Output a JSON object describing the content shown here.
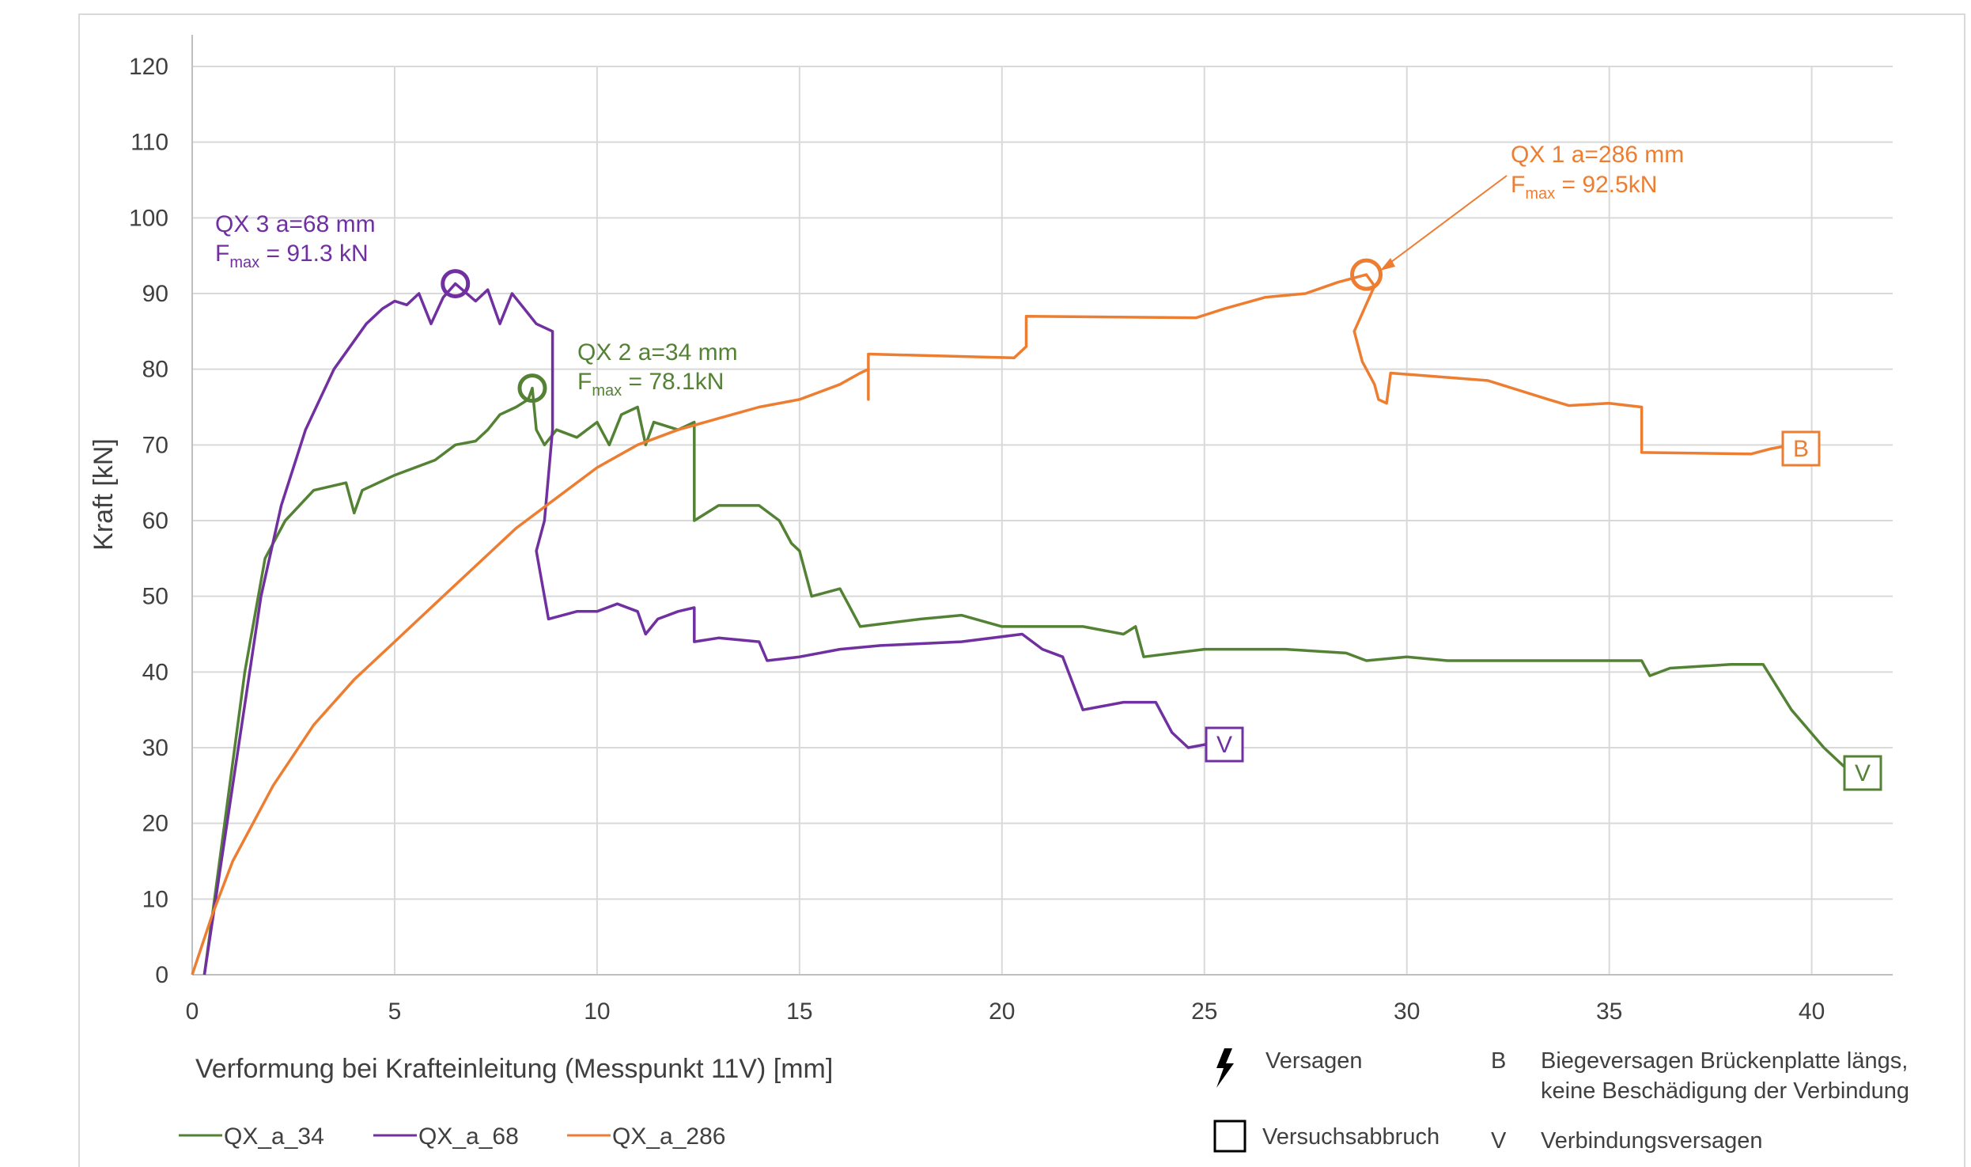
{
  "chart_data": {
    "type": "line",
    "xlabel": "Verformung bei Krafteinleitung (Messpunkt 11V) [mm]",
    "ylabel": "Kraft [kN]",
    "xlim": [
      0,
      42
    ],
    "ylim": [
      0,
      120
    ],
    "xticks": [
      0,
      5,
      10,
      15,
      20,
      25,
      30,
      35,
      40
    ],
    "yticks": [
      0,
      10,
      20,
      30,
      40,
      50,
      60,
      70,
      80,
      90,
      100,
      110,
      120
    ],
    "grid": true,
    "legend_position": "bottom-left",
    "series": [
      {
        "name": "QX_a_34",
        "color": "#548235",
        "points": [
          [
            0.3,
            0
          ],
          [
            0.8,
            20
          ],
          [
            1.3,
            40
          ],
          [
            1.8,
            55
          ],
          [
            2.3,
            60
          ],
          [
            3,
            64
          ],
          [
            3.8,
            65
          ],
          [
            4,
            61
          ],
          [
            4.2,
            64
          ],
          [
            5,
            66
          ],
          [
            6,
            68
          ],
          [
            6.5,
            70
          ],
          [
            7,
            70.5
          ],
          [
            7.3,
            72
          ],
          [
            7.6,
            74
          ],
          [
            8,
            75
          ],
          [
            8.3,
            76
          ],
          [
            8.4,
            77.5
          ],
          [
            8.5,
            72
          ],
          [
            8.7,
            70
          ],
          [
            9,
            72
          ],
          [
            9.5,
            71
          ],
          [
            10,
            73
          ],
          [
            10.3,
            70
          ],
          [
            10.6,
            74
          ],
          [
            11,
            75
          ],
          [
            11.2,
            70
          ],
          [
            11.4,
            73
          ],
          [
            12,
            72
          ],
          [
            12.4,
            73
          ],
          [
            12.4,
            60
          ],
          [
            13,
            62
          ],
          [
            14,
            62
          ],
          [
            14.5,
            60
          ],
          [
            14.8,
            57
          ],
          [
            15,
            56
          ],
          [
            15.3,
            50
          ],
          [
            16,
            51
          ],
          [
            16.2,
            49
          ],
          [
            16.5,
            46
          ],
          [
            18,
            47
          ],
          [
            19,
            47.5
          ],
          [
            20,
            46
          ],
          [
            21,
            46
          ],
          [
            22,
            46
          ],
          [
            23,
            45
          ],
          [
            23.3,
            46
          ],
          [
            23.5,
            42
          ],
          [
            25,
            43
          ],
          [
            27,
            43
          ],
          [
            28.5,
            42.5
          ],
          [
            29,
            41.5
          ],
          [
            30,
            42
          ],
          [
            31,
            41.5
          ],
          [
            32,
            41.5
          ],
          [
            34,
            41.5
          ],
          [
            35,
            41.5
          ],
          [
            35.8,
            41.5
          ],
          [
            36,
            39.5
          ],
          [
            36.5,
            40.5
          ],
          [
            38,
            41
          ],
          [
            38.8,
            41
          ],
          [
            39.5,
            35
          ],
          [
            40.3,
            30
          ],
          [
            41,
            26.5
          ]
        ]
      },
      {
        "name": "QX_a_68",
        "color": "#7030A0",
        "points": [
          [
            0.3,
            0
          ],
          [
            1,
            25
          ],
          [
            1.7,
            50
          ],
          [
            2.2,
            62
          ],
          [
            2.8,
            72
          ],
          [
            3.5,
            80
          ],
          [
            4.3,
            86
          ],
          [
            4.7,
            88
          ],
          [
            5,
            89
          ],
          [
            5.3,
            88.5
          ],
          [
            5.6,
            90
          ],
          [
            5.9,
            86
          ],
          [
            6.2,
            89.5
          ],
          [
            6.5,
            91.3
          ],
          [
            7,
            89
          ],
          [
            7.3,
            90.5
          ],
          [
            7.6,
            86
          ],
          [
            7.9,
            90
          ],
          [
            8.2,
            88
          ],
          [
            8.5,
            86
          ],
          [
            8.9,
            85
          ],
          [
            8.9,
            72
          ],
          [
            8.7,
            60
          ],
          [
            8.5,
            56
          ],
          [
            8.6,
            53
          ],
          [
            8.8,
            47
          ],
          [
            9.5,
            48
          ],
          [
            10,
            48
          ],
          [
            10.5,
            49
          ],
          [
            11,
            48
          ],
          [
            11.2,
            45
          ],
          [
            11.5,
            47
          ],
          [
            12,
            48
          ],
          [
            12.4,
            48.5
          ],
          [
            12.4,
            44
          ],
          [
            13,
            44.5
          ],
          [
            14,
            44
          ],
          [
            14.2,
            41.5
          ],
          [
            15,
            42
          ],
          [
            16,
            43
          ],
          [
            17,
            43.5
          ],
          [
            19,
            44
          ],
          [
            20.5,
            45
          ],
          [
            21,
            43
          ],
          [
            21.5,
            42
          ],
          [
            22,
            35
          ],
          [
            22.5,
            35.5
          ],
          [
            23,
            36
          ],
          [
            23.8,
            36
          ],
          [
            24.2,
            32
          ],
          [
            24.6,
            30
          ],
          [
            25.1,
            30.5
          ]
        ]
      },
      {
        "name": "QX_a_286",
        "color": "#ED7D31",
        "points": [
          [
            0,
            0
          ],
          [
            0.5,
            8
          ],
          [
            1,
            15
          ],
          [
            2,
            25
          ],
          [
            3,
            33
          ],
          [
            4,
            39
          ],
          [
            5,
            44
          ],
          [
            6,
            49
          ],
          [
            7,
            54
          ],
          [
            8,
            59
          ],
          [
            9,
            63
          ],
          [
            10,
            67
          ],
          [
            11,
            70
          ],
          [
            12,
            72
          ],
          [
            13,
            73.5
          ],
          [
            14,
            75
          ],
          [
            15,
            76
          ],
          [
            15.5,
            77
          ],
          [
            16,
            78
          ],
          [
            16.5,
            79.5
          ],
          [
            16.7,
            80
          ],
          [
            16.7,
            76
          ],
          [
            16.7,
            82
          ],
          [
            20.3,
            81.5
          ],
          [
            20.6,
            83
          ],
          [
            20.6,
            87
          ],
          [
            24.8,
            86.8
          ],
          [
            25.5,
            88
          ],
          [
            26.5,
            89.5
          ],
          [
            27.5,
            90
          ],
          [
            28.3,
            91.5
          ],
          [
            29,
            92.5
          ],
          [
            29.2,
            91
          ],
          [
            28.7,
            85
          ],
          [
            28.9,
            81
          ],
          [
            29.2,
            78
          ],
          [
            29.3,
            76
          ],
          [
            29.5,
            75.5
          ],
          [
            29.6,
            79.5
          ],
          [
            32,
            78.5
          ],
          [
            33.5,
            76
          ],
          [
            34,
            75.2
          ],
          [
            35,
            75.5
          ],
          [
            35.8,
            75
          ],
          [
            35.8,
            69
          ],
          [
            38.5,
            68.8
          ],
          [
            39,
            69.5
          ],
          [
            39.5,
            70
          ]
        ]
      }
    ]
  },
  "annotations": {
    "qx3_title": "QX 3 a=68 mm",
    "qx3_fmax_prefix": "F",
    "qx3_fmax_sub": "max",
    "qx3_fmax_value": " = 91.3 kN",
    "qx2_title": "QX 2 a=34 mm",
    "qx2_fmax_prefix": "F",
    "qx2_fmax_sub": "max",
    "qx2_fmax_value": " = 78.1kN",
    "qx1_title": "QX 1 a=286 mm",
    "qx1_fmax_prefix": "F",
    "qx1_fmax_sub": "max",
    "qx1_fmax_value": " = 92.5kN",
    "marker_v": "V",
    "marker_b": "B"
  },
  "notes": {
    "versagen": "Versagen",
    "versuchsabbruch": "Versuchsabbruch",
    "b_key": "B",
    "b_line1": "Biegeversagen Brückenplatte längs,",
    "b_line2": "keine Beschädigung der Verbindung",
    "v_key": "V",
    "v_text": "Verbindungsversagen"
  },
  "legend": {
    "items": [
      "QX_a_34",
      "QX_a_68",
      "QX_a_286"
    ]
  }
}
